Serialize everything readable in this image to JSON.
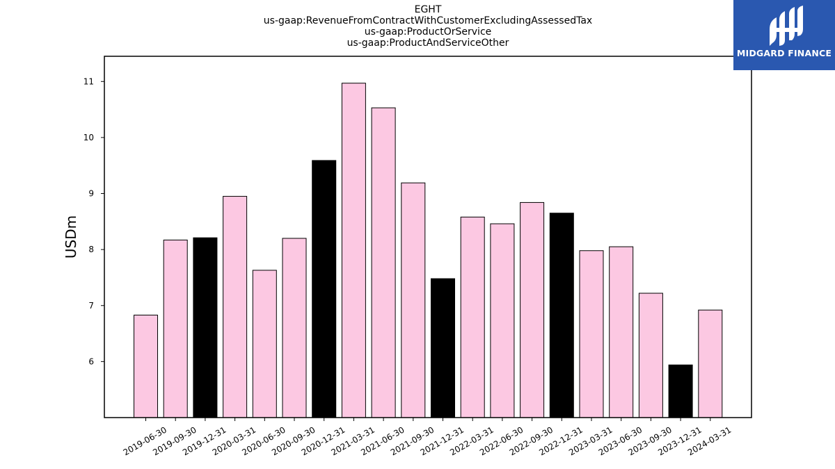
{
  "title_lines": [
    "EGHT",
    "us-gaap:RevenueFromContractWithCustomerExcludingAssessedTax",
    "us-gaap:ProductOrService",
    "us-gaap:ProductAndServiceOther"
  ],
  "logo": {
    "text": "MIDGARD FINANCE",
    "icon": "midgard-logo-icon",
    "background": "#2a58b0"
  },
  "chart_data": {
    "type": "bar",
    "title": "EGHT",
    "subtitle": [
      "us-gaap:RevenueFromContractWithCustomerExcludingAssessedTax",
      "us-gaap:ProductOrService",
      "us-gaap:ProductAndServiceOther"
    ],
    "xlabel": "",
    "ylabel": "USDm",
    "ylim": [
      5.0,
      11.45
    ],
    "yticks": [
      6,
      7,
      8,
      9,
      10,
      11
    ],
    "categories": [
      "2019-06-30",
      "2019-09-30",
      "2019-12-31",
      "2020-03-31",
      "2020-06-30",
      "2020-09-30",
      "2020-12-31",
      "2021-03-31",
      "2021-06-30",
      "2021-09-30",
      "2021-12-31",
      "2022-03-31",
      "2022-06-30",
      "2022-09-30",
      "2022-12-31",
      "2023-03-31",
      "2023-06-30",
      "2023-09-30",
      "2023-12-31",
      "2024-03-31"
    ],
    "values": [
      6.83,
      8.17,
      8.21,
      8.95,
      7.63,
      8.2,
      9.59,
      10.97,
      10.53,
      9.19,
      7.48,
      8.58,
      8.46,
      8.84,
      8.65,
      7.98,
      8.05,
      7.22,
      5.94,
      6.92
    ],
    "colors": [
      "#fcc8e2",
      "#fcc8e2",
      "#000000",
      "#fcc8e2",
      "#fcc8e2",
      "#fcc8e2",
      "#000000",
      "#fcc8e2",
      "#fcc8e2",
      "#fcc8e2",
      "#000000",
      "#fcc8e2",
      "#fcc8e2",
      "#fcc8e2",
      "#000000",
      "#fcc8e2",
      "#fcc8e2",
      "#fcc8e2",
      "#000000",
      "#fcc8e2"
    ],
    "grid": false,
    "legend": "none"
  }
}
